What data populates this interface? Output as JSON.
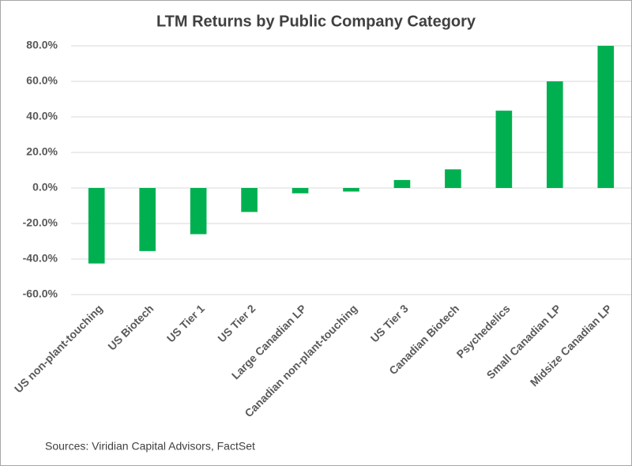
{
  "chart_data": {
    "type": "bar",
    "title": "LTM Returns by Public Company Category",
    "categories": [
      "US non-plant-touching",
      "US Biotech",
      "US Tier 1",
      "US Tier 2",
      "Large Canadian LP",
      "Canadian non-plant-touching",
      "US Tier 3",
      "Canadian Biotech",
      "Psychedelics",
      "Small Canadian LP",
      "Midsize Canadian LP"
    ],
    "values": [
      -42.5,
      -35.5,
      -26,
      -13.5,
      -3,
      -2,
      4.5,
      10.5,
      43.5,
      60,
      80
    ],
    "color": "#00b050",
    "ylim": [
      -60,
      80
    ],
    "yticks": [
      {
        "value": -60,
        "label": "-60.0%"
      },
      {
        "value": -40,
        "label": "-40.0%"
      },
      {
        "value": -20,
        "label": "-20.0%"
      },
      {
        "value": 0,
        "label": "0.0%"
      },
      {
        "value": 20,
        "label": "20.0%"
      },
      {
        "value": 40,
        "label": "40.0%"
      },
      {
        "value": 60,
        "label": "60.0%"
      },
      {
        "value": 80,
        "label": "80.0%"
      }
    ],
    "grid": true,
    "source": "Sources: Viridian Capital Advisors, FactSet"
  }
}
